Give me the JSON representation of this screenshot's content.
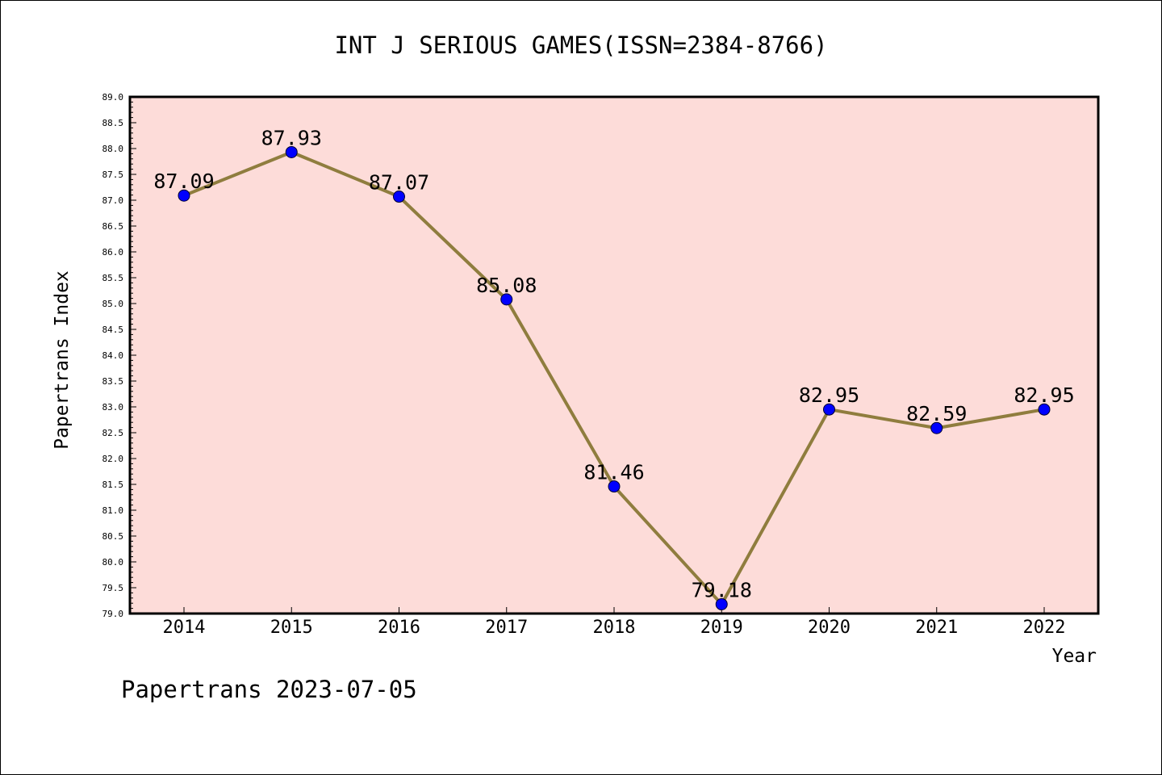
{
  "chart_data": {
    "type": "line",
    "title": "INT J SERIOUS GAMES(ISSN=2384-8766)",
    "xlabel": "Year",
    "ylabel": "Papertrans Index",
    "categories": [
      "2014",
      "2015",
      "2016",
      "2017",
      "2018",
      "2019",
      "2020",
      "2021",
      "2022"
    ],
    "values": [
      87.09,
      87.93,
      87.07,
      85.08,
      81.46,
      79.18,
      82.95,
      82.59,
      82.95
    ],
    "data_labels": [
      "87.09",
      "87.93",
      "87.07",
      "85.08",
      "81.46",
      "79.18",
      "82.95",
      "82.59",
      "82.95"
    ],
    "ylim": [
      79.0,
      89.0
    ],
    "ytick_step": 0.5,
    "ytick_labels": [
      "79.0",
      "79.5",
      "80.0",
      "80.5",
      "81.0",
      "81.5",
      "82.0",
      "82.5",
      "83.0",
      "83.5",
      "84.0",
      "84.5",
      "85.0",
      "85.5",
      "86.0",
      "86.5",
      "87.0",
      "87.5",
      "88.0",
      "88.5",
      "89.0"
    ],
    "grid": false,
    "colors": {
      "plot_background": "#fddcd9",
      "line": "#8f7d3e",
      "marker": "#0000ff"
    }
  },
  "footer": "Papertrans 2023-07-05"
}
